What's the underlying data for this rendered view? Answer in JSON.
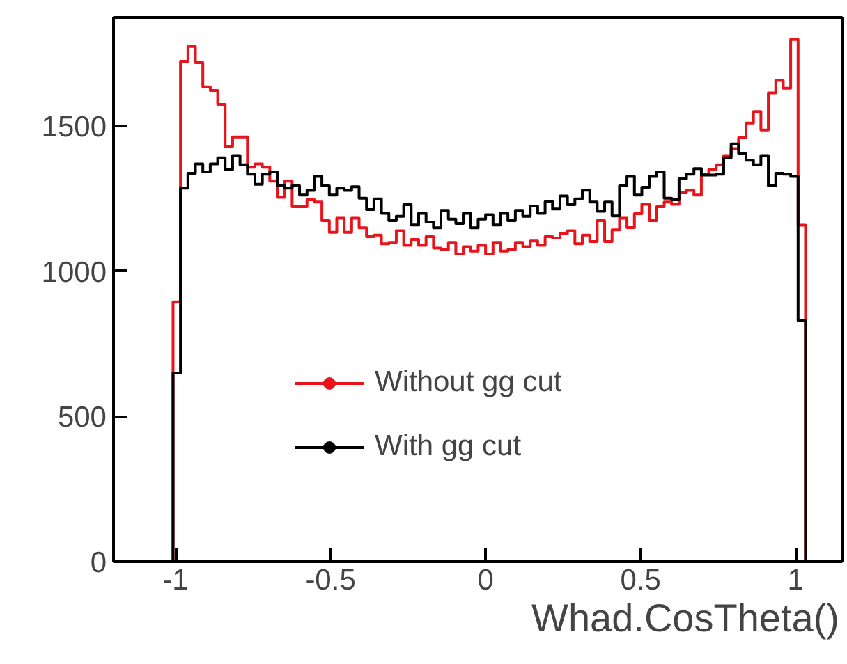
{
  "chart_data": {
    "type": "histogram",
    "xlabel": "Whad.CosTheta()",
    "bins": [
      -1.008,
      -0.984,
      -0.96,
      -0.936,
      -0.912,
      -0.888,
      -0.864,
      -0.84,
      -0.816,
      -0.792,
      -0.768,
      -0.744,
      -0.72,
      -0.696,
      -0.672,
      -0.648,
      -0.624,
      -0.6,
      -0.576,
      -0.552,
      -0.528,
      -0.504,
      -0.48,
      -0.456,
      -0.432,
      -0.408,
      -0.384,
      -0.36,
      -0.336,
      -0.312,
      -0.288,
      -0.264,
      -0.24,
      -0.216,
      -0.192,
      -0.168,
      -0.144,
      -0.12,
      -0.096,
      -0.072,
      -0.048,
      -0.024,
      0,
      0.024,
      0.048,
      0.072,
      0.096,
      0.12,
      0.144,
      0.168,
      0.192,
      0.216,
      0.24,
      0.264,
      0.288,
      0.312,
      0.336,
      0.36,
      0.384,
      0.408,
      0.432,
      0.456,
      0.48,
      0.504,
      0.528,
      0.552,
      0.576,
      0.6,
      0.624,
      0.648,
      0.672,
      0.696,
      0.72,
      0.744,
      0.768,
      0.792,
      0.816,
      0.84,
      0.864,
      0.888,
      0.912,
      0.936,
      0.96,
      0.984,
      1.008,
      1.032
    ],
    "series": [
      {
        "name": "Without gg cut",
        "color": "#e8141c",
        "values": [
          895,
          1724,
          1775,
          1719,
          1636,
          1623,
          1575,
          1431,
          1463,
          1463,
          1359,
          1370,
          1359,
          1311,
          1255,
          1311,
          1223,
          1223,
          1247,
          1239,
          1175,
          1135,
          1183,
          1135,
          1183,
          1150,
          1120,
          1125,
          1095,
          1100,
          1140,
          1090,
          1110,
          1090,
          1120,
          1080,
          1075,
          1100,
          1060,
          1085,
          1070,
          1090,
          1060,
          1100,
          1070,
          1075,
          1100,
          1085,
          1105,
          1090,
          1120,
          1115,
          1130,
          1140,
          1095,
          1125,
          1103,
          1175,
          1103,
          1143,
          1183,
          1151,
          1199,
          1231,
          1175,
          1223,
          1239,
          1231,
          1271,
          1279,
          1263,
          1335,
          1351,
          1367,
          1399,
          1423,
          1460,
          1511,
          1551,
          1487,
          1615,
          1658,
          1631,
          1799,
          1159
        ]
      },
      {
        "name": "With gg cut",
        "color": "#000000",
        "values": [
          650,
          1287,
          1338,
          1370,
          1343,
          1370,
          1391,
          1351,
          1399,
          1367,
          1335,
          1300,
          1335,
          1343,
          1295,
          1287,
          1295,
          1263,
          1279,
          1327,
          1295,
          1263,
          1287,
          1279,
          1292,
          1252,
          1213,
          1250,
          1200,
          1175,
          1190,
          1230,
          1160,
          1200,
          1170,
          1150,
          1210,
          1180,
          1165,
          1200,
          1150,
          1180,
          1195,
          1160,
          1200,
          1175,
          1210,
          1190,
          1225,
          1200,
          1240,
          1215,
          1260,
          1230,
          1250,
          1280,
          1239,
          1207,
          1239,
          1191,
          1295,
          1327,
          1263,
          1290,
          1327,
          1343,
          1252,
          1247,
          1319,
          1335,
          1354,
          1332,
          1332,
          1335,
          1391,
          1439,
          1407,
          1383,
          1367,
          1399,
          1295,
          1338,
          1335,
          1327,
          831
        ]
      }
    ],
    "xlim": [
      -1.2,
      1.15
    ],
    "ylim": [
      0,
      1875
    ],
    "xticks": [
      {
        "value": -1,
        "label": "-1"
      },
      {
        "value": -0.5,
        "label": "-0.5"
      },
      0,
      0.5,
      1
    ],
    "yticks": [
      0,
      500,
      1000,
      1500
    ],
    "grid": false,
    "legend": "bottom",
    "marker": "circle"
  }
}
